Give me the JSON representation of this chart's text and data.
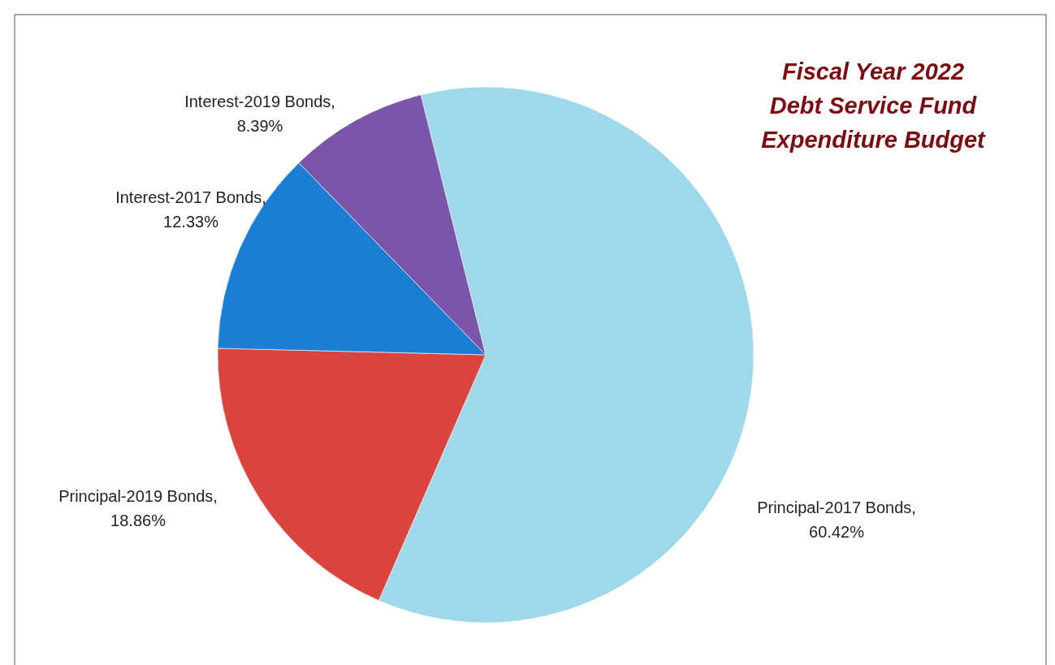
{
  "chart_data": {
    "type": "pie",
    "title": "Fiscal Year 2022\nDebt Service Fund\nExpenditure Budget",
    "categories": [
      "Principal-2017 Bonds",
      "Principal-2019 Bonds",
      "Interest-2017 Bonds",
      "Interest-2019 Bonds"
    ],
    "values": [
      60.42,
      18.86,
      12.33,
      8.39
    ],
    "value_labels": [
      ",\n60.42%",
      ",\n18.86%",
      ",\n12.33%",
      ",\n8.39%"
    ],
    "colors": [
      "#9fd8ea",
      "#d9443f",
      "#1a7fd4",
      "#7b56a8"
    ]
  }
}
